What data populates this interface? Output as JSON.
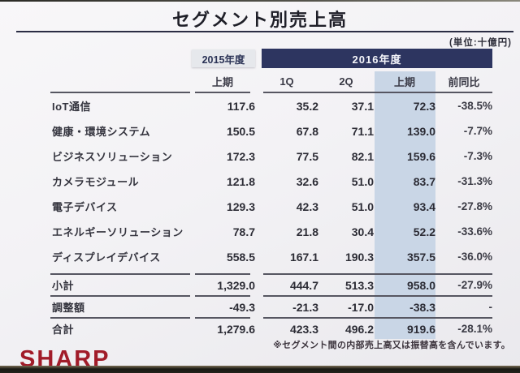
{
  "slide": {
    "title": "セグメント別売上高",
    "unit_label": "(単位:十億円)",
    "footnote": "※セグメント間の内部売上高又は振替高を含んでいます。",
    "logo_text": "SHARP"
  },
  "table": {
    "group_headers": {
      "fy2015": "2015年度",
      "fy2016": "2016年度"
    },
    "subheaders": {
      "fy2015_h1": "上期",
      "q1": "1Q",
      "q2": "2Q",
      "h1_2016": "上期",
      "yoy": "前同比"
    },
    "rows": [
      {
        "label": "IoT通信",
        "fy2015_h1": "117.6",
        "q1": "35.2",
        "q2": "37.1",
        "h1_2016": "72.3",
        "yoy": "-38.5%"
      },
      {
        "label": "健康・環境システム",
        "fy2015_h1": "150.5",
        "q1": "67.8",
        "q2": "71.1",
        "h1_2016": "139.0",
        "yoy": "-7.7%"
      },
      {
        "label": "ビジネスソリューション",
        "fy2015_h1": "172.3",
        "q1": "77.5",
        "q2": "82.1",
        "h1_2016": "159.6",
        "yoy": "-7.3%"
      },
      {
        "label": "カメラモジュール",
        "fy2015_h1": "121.8",
        "q1": "32.6",
        "q2": "51.0",
        "h1_2016": "83.7",
        "yoy": "-31.3%"
      },
      {
        "label": "電子デバイス",
        "fy2015_h1": "129.3",
        "q1": "42.3",
        "q2": "51.0",
        "h1_2016": "93.4",
        "yoy": "-27.8%"
      },
      {
        "label": "エネルギーソリューション",
        "fy2015_h1": "78.7",
        "q1": "21.8",
        "q2": "30.4",
        "h1_2016": "52.2",
        "yoy": "-33.6%"
      },
      {
        "label": "ディスプレイデバイス",
        "fy2015_h1": "558.5",
        "q1": "167.1",
        "q2": "190.3",
        "h1_2016": "357.5",
        "yoy": "-36.0%"
      }
    ],
    "subtotal_row": {
      "label": "小計",
      "fy2015_h1": "1,329.0",
      "q1": "444.7",
      "q2": "513.3",
      "h1_2016": "958.0",
      "yoy": "-27.9%"
    },
    "adjustment_row": {
      "label": "調整額",
      "fy2015_h1": "-49.3",
      "q1": "-21.3",
      "q2": "-17.0",
      "h1_2016": "-38.3",
      "yoy": "-"
    },
    "total_row": {
      "label": "合計",
      "fy2015_h1": "1,279.6",
      "q1": "423.3",
      "q2": "496.2",
      "h1_2016": "919.6",
      "yoy": "-28.1%"
    }
  },
  "colors": {
    "header_navy": "#2d3560",
    "header_gray_box": "#e6e8ec",
    "highlight_band_blue": "#c9d6e6",
    "logo_red": "#a11c29",
    "rule_gray": "#565661",
    "slide_background": "#f3f2f5"
  }
}
